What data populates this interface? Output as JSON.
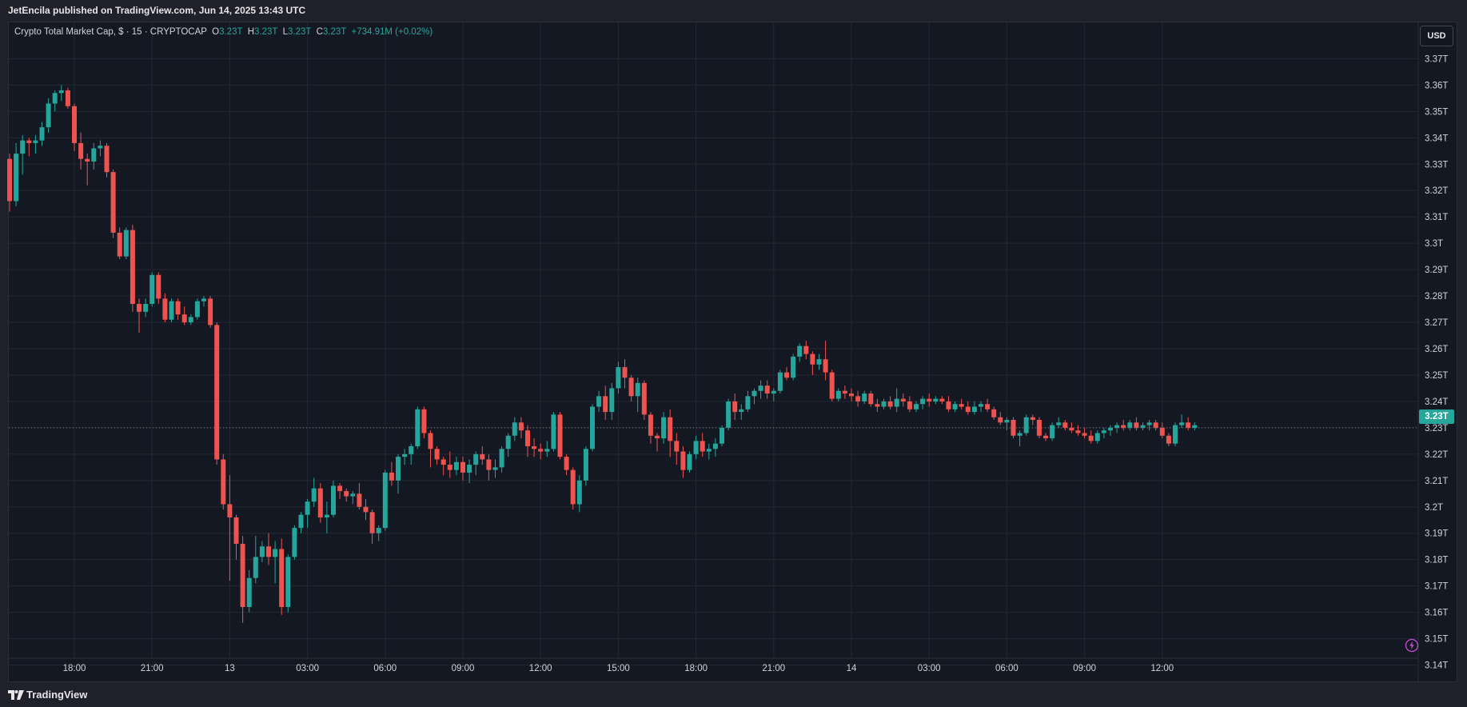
{
  "header": {
    "publisher_line": "JetEncila published on TradingView.com, Jun 14, 2025 13:43 UTC"
  },
  "legend": {
    "title": "Crypto Total Market Cap, $ · 15 · CRYPTOCAP",
    "o_label": "O",
    "o_value": "3.23T",
    "h_label": "H",
    "h_value": "3.23T",
    "l_label": "L",
    "l_value": "3.23T",
    "c_label": "C",
    "c_value": "3.23T",
    "change": "+734.91M (+0.02%)"
  },
  "currency": "USD",
  "last_price_label": "3.23T",
  "footer": {
    "brand": "TradingView"
  },
  "colors": {
    "up": "#26a69a",
    "down": "#ef5350",
    "background": "#141823",
    "grid": "#232733"
  },
  "chart_data": {
    "type": "candlestick",
    "symbol": "Crypto Total Market Cap",
    "interval": "15",
    "exchange": "CRYPTOCAP",
    "currency": "USD",
    "y_unit": "T",
    "ylim": [
      3.135,
      3.385
    ],
    "y_ticks": [
      3.14,
      3.15,
      3.16,
      3.17,
      3.18,
      3.19,
      3.2,
      3.21,
      3.22,
      3.23,
      3.24,
      3.25,
      3.26,
      3.27,
      3.28,
      3.29,
      3.3,
      3.31,
      3.32,
      3.33,
      3.34,
      3.35,
      3.36,
      3.37
    ],
    "y_tick_labels": [
      "3.14T",
      "3.15T",
      "3.16T",
      "3.17T",
      "3.18T",
      "3.19T",
      "3.2T",
      "3.21T",
      "3.22T",
      "3.23T",
      "3.24T",
      "3.25T",
      "3.26T",
      "3.27T",
      "3.28T",
      "3.29T",
      "3.3T",
      "3.31T",
      "3.32T",
      "3.33T",
      "3.34T",
      "3.35T",
      "3.36T",
      "3.37T"
    ],
    "x_ticks": [
      {
        "index": 10,
        "label": "18:00"
      },
      {
        "index": 22,
        "label": "21:00"
      },
      {
        "index": 34,
        "label": "13"
      },
      {
        "index": 46,
        "label": "03:00"
      },
      {
        "index": 58,
        "label": "06:00"
      },
      {
        "index": 70,
        "label": "09:00"
      },
      {
        "index": 82,
        "label": "12:00"
      },
      {
        "index": 94,
        "label": "15:00"
      },
      {
        "index": 106,
        "label": "18:00"
      },
      {
        "index": 118,
        "label": "21:00"
      },
      {
        "index": 130,
        "label": "14"
      },
      {
        "index": 142,
        "label": "03:00"
      },
      {
        "index": 154,
        "label": "06:00"
      },
      {
        "index": 166,
        "label": "09:00"
      },
      {
        "index": 178,
        "label": "12:00"
      }
    ],
    "last_price": 3.23,
    "grid": true,
    "candles": [
      [
        3.332,
        3.334,
        3.312,
        3.316
      ],
      [
        3.316,
        3.338,
        3.314,
        3.334
      ],
      [
        3.334,
        3.341,
        3.326,
        3.339
      ],
      [
        3.339,
        3.34,
        3.333,
        3.338
      ],
      [
        3.338,
        3.341,
        3.334,
        3.339
      ],
      [
        3.339,
        3.346,
        3.337,
        3.344
      ],
      [
        3.344,
        3.355,
        3.342,
        3.353
      ],
      [
        3.353,
        3.358,
        3.35,
        3.357
      ],
      [
        3.357,
        3.36,
        3.354,
        3.358
      ],
      [
        3.358,
        3.359,
        3.351,
        3.352
      ],
      [
        3.352,
        3.353,
        3.335,
        3.338
      ],
      [
        3.338,
        3.342,
        3.328,
        3.332
      ],
      [
        3.332,
        3.334,
        3.322,
        3.331
      ],
      [
        3.331,
        3.338,
        3.328,
        3.336
      ],
      [
        3.336,
        3.339,
        3.333,
        3.337
      ],
      [
        3.337,
        3.338,
        3.325,
        3.327
      ],
      [
        3.327,
        3.328,
        3.302,
        3.304
      ],
      [
        3.304,
        3.306,
        3.294,
        3.295
      ],
      [
        3.295,
        3.306,
        3.294,
        3.305
      ],
      [
        3.305,
        3.307,
        3.274,
        3.277
      ],
      [
        3.277,
        3.279,
        3.266,
        3.274
      ],
      [
        3.274,
        3.279,
        3.272,
        3.277
      ],
      [
        3.277,
        3.289,
        3.276,
        3.288
      ],
      [
        3.288,
        3.289,
        3.277,
        3.279
      ],
      [
        3.279,
        3.281,
        3.27,
        3.271
      ],
      [
        3.271,
        3.279,
        3.27,
        3.278
      ],
      [
        3.278,
        3.279,
        3.271,
        3.273
      ],
      [
        3.273,
        3.276,
        3.269,
        3.27
      ],
      [
        3.27,
        3.273,
        3.269,
        3.272
      ],
      [
        3.272,
        3.279,
        3.271,
        3.278
      ],
      [
        3.278,
        3.28,
        3.276,
        3.279
      ],
      [
        3.279,
        3.28,
        3.268,
        3.269
      ],
      [
        3.269,
        3.27,
        3.216,
        3.218
      ],
      [
        3.218,
        3.22,
        3.199,
        3.201
      ],
      [
        3.201,
        3.212,
        3.172,
        3.196
      ],
      [
        3.196,
        3.197,
        3.18,
        3.186
      ],
      [
        3.186,
        3.189,
        3.156,
        3.162
      ],
      [
        3.162,
        3.176,
        3.16,
        3.173
      ],
      [
        3.173,
        3.189,
        3.171,
        3.181
      ],
      [
        3.181,
        3.187,
        3.179,
        3.185
      ],
      [
        3.185,
        3.19,
        3.178,
        3.181
      ],
      [
        3.181,
        3.187,
        3.171,
        3.184
      ],
      [
        3.184,
        3.188,
        3.159,
        3.162
      ],
      [
        3.162,
        3.182,
        3.16,
        3.181
      ],
      [
        3.181,
        3.193,
        3.18,
        3.192
      ],
      [
        3.192,
        3.198,
        3.19,
        3.197
      ],
      [
        3.197,
        3.203,
        3.192,
        3.202
      ],
      [
        3.202,
        3.211,
        3.2,
        3.207
      ],
      [
        3.207,
        3.209,
        3.194,
        3.196
      ],
      [
        3.196,
        3.202,
        3.19,
        3.197
      ],
      [
        3.197,
        3.21,
        3.196,
        3.208
      ],
      [
        3.208,
        3.209,
        3.203,
        3.206
      ],
      [
        3.206,
        3.207,
        3.202,
        3.204
      ],
      [
        3.204,
        3.206,
        3.201,
        3.205
      ],
      [
        3.205,
        3.209,
        3.199,
        3.2
      ],
      [
        3.2,
        3.203,
        3.195,
        3.198
      ],
      [
        3.198,
        3.199,
        3.186,
        3.19
      ],
      [
        3.19,
        3.193,
        3.187,
        3.192
      ],
      [
        3.192,
        3.214,
        3.191,
        3.213
      ],
      [
        3.213,
        3.217,
        3.208,
        3.21
      ],
      [
        3.21,
        3.22,
        3.205,
        3.219
      ],
      [
        3.219,
        3.222,
        3.216,
        3.22
      ],
      [
        3.22,
        3.224,
        3.216,
        3.223
      ],
      [
        3.223,
        3.238,
        3.222,
        3.237
      ],
      [
        3.237,
        3.238,
        3.226,
        3.228
      ],
      [
        3.228,
        3.229,
        3.215,
        3.222
      ],
      [
        3.222,
        3.223,
        3.216,
        3.218
      ],
      [
        3.218,
        3.219,
        3.212,
        3.216
      ],
      [
        3.216,
        3.221,
        3.211,
        3.214
      ],
      [
        3.214,
        3.219,
        3.212,
        3.217
      ],
      [
        3.217,
        3.219,
        3.21,
        3.213
      ],
      [
        3.213,
        3.218,
        3.209,
        3.216
      ],
      [
        3.216,
        3.221,
        3.212,
        3.22
      ],
      [
        3.22,
        3.223,
        3.216,
        3.218
      ],
      [
        3.218,
        3.22,
        3.21,
        3.214
      ],
      [
        3.214,
        3.218,
        3.211,
        3.215
      ],
      [
        3.215,
        3.223,
        3.213,
        3.222
      ],
      [
        3.222,
        3.228,
        3.219,
        3.227
      ],
      [
        3.227,
        3.234,
        3.225,
        3.232
      ],
      [
        3.232,
        3.234,
        3.226,
        3.229
      ],
      [
        3.229,
        3.231,
        3.219,
        3.223
      ],
      [
        3.223,
        3.226,
        3.219,
        3.222
      ],
      [
        3.222,
        3.224,
        3.218,
        3.221
      ],
      [
        3.221,
        3.225,
        3.219,
        3.222
      ],
      [
        3.222,
        3.236,
        3.221,
        3.235
      ],
      [
        3.235,
        3.236,
        3.218,
        3.219
      ],
      [
        3.219,
        3.22,
        3.212,
        3.214
      ],
      [
        3.214,
        3.215,
        3.199,
        3.201
      ],
      [
        3.201,
        3.212,
        3.198,
        3.21
      ],
      [
        3.21,
        3.223,
        3.208,
        3.222
      ],
      [
        3.222,
        3.239,
        3.221,
        3.238
      ],
      [
        3.238,
        3.244,
        3.236,
        3.242
      ],
      [
        3.242,
        3.246,
        3.233,
        3.236
      ],
      [
        3.236,
        3.247,
        3.233,
        3.245
      ],
      [
        3.245,
        3.255,
        3.243,
        3.253
      ],
      [
        3.253,
        3.256,
        3.245,
        3.249
      ],
      [
        3.249,
        3.25,
        3.24,
        3.242
      ],
      [
        3.242,
        3.249,
        3.236,
        3.247
      ],
      [
        3.247,
        3.248,
        3.233,
        3.235
      ],
      [
        3.235,
        3.236,
        3.224,
        3.227
      ],
      [
        3.227,
        3.228,
        3.221,
        3.226
      ],
      [
        3.226,
        3.236,
        3.224,
        3.234
      ],
      [
        3.234,
        3.237,
        3.219,
        3.225
      ],
      [
        3.225,
        3.228,
        3.216,
        3.221
      ],
      [
        3.221,
        3.223,
        3.211,
        3.214
      ],
      [
        3.214,
        3.221,
        3.213,
        3.22
      ],
      [
        3.22,
        3.227,
        3.218,
        3.225
      ],
      [
        3.225,
        3.228,
        3.219,
        3.221
      ],
      [
        3.221,
        3.224,
        3.218,
        3.222
      ],
      [
        3.222,
        3.226,
        3.219,
        3.224
      ],
      [
        3.224,
        3.231,
        3.223,
        3.23
      ],
      [
        3.23,
        3.241,
        3.229,
        3.24
      ],
      [
        3.24,
        3.243,
        3.233,
        3.236
      ],
      [
        3.236,
        3.239,
        3.233,
        3.237
      ],
      [
        3.237,
        3.244,
        3.236,
        3.242
      ],
      [
        3.242,
        3.245,
        3.239,
        3.244
      ],
      [
        3.244,
        3.248,
        3.241,
        3.246
      ],
      [
        3.246,
        3.248,
        3.241,
        3.243
      ],
      [
        3.243,
        3.245,
        3.24,
        3.244
      ],
      [
        3.244,
        3.252,
        3.243,
        3.251
      ],
      [
        3.251,
        3.253,
        3.248,
        3.249
      ],
      [
        3.249,
        3.258,
        3.248,
        3.257
      ],
      [
        3.257,
        3.262,
        3.255,
        3.261
      ],
      [
        3.261,
        3.263,
        3.256,
        3.258
      ],
      [
        3.258,
        3.259,
        3.25,
        3.254
      ],
      [
        3.254,
        3.258,
        3.252,
        3.256
      ],
      [
        3.256,
        3.263,
        3.248,
        3.251
      ],
      [
        3.251,
        3.252,
        3.24,
        3.241
      ],
      [
        3.241,
        3.245,
        3.24,
        3.244
      ],
      [
        3.244,
        3.246,
        3.241,
        3.243
      ],
      [
        3.243,
        3.245,
        3.24,
        3.242
      ],
      [
        3.242,
        3.244,
        3.238,
        3.24
      ],
      [
        3.24,
        3.244,
        3.239,
        3.243
      ],
      [
        3.243,
        3.244,
        3.238,
        3.239
      ],
      [
        3.239,
        3.241,
        3.236,
        3.238
      ],
      [
        3.238,
        3.241,
        3.237,
        3.24
      ],
      [
        3.24,
        3.242,
        3.237,
        3.238
      ],
      [
        3.238,
        3.245,
        3.236,
        3.241
      ],
      [
        3.241,
        3.243,
        3.238,
        3.24
      ],
      [
        3.24,
        3.242,
        3.236,
        3.237
      ],
      [
        3.237,
        3.24,
        3.236,
        3.239
      ],
      [
        3.239,
        3.242,
        3.237,
        3.241
      ],
      [
        3.241,
        3.243,
        3.238,
        3.24
      ],
      [
        3.24,
        3.242,
        3.239,
        3.241
      ],
      [
        3.241,
        3.242,
        3.239,
        3.24
      ],
      [
        3.24,
        3.242,
        3.236,
        3.237
      ],
      [
        3.237,
        3.24,
        3.236,
        3.239
      ],
      [
        3.239,
        3.241,
        3.237,
        3.238
      ],
      [
        3.238,
        3.24,
        3.235,
        3.236
      ],
      [
        3.236,
        3.24,
        3.235,
        3.238
      ],
      [
        3.238,
        3.24,
        3.236,
        3.239
      ],
      [
        3.239,
        3.241,
        3.236,
        3.237
      ],
      [
        3.237,
        3.238,
        3.233,
        3.234
      ],
      [
        3.234,
        3.236,
        3.231,
        3.232
      ],
      [
        3.232,
        3.234,
        3.229,
        3.233
      ],
      [
        3.233,
        3.234,
        3.226,
        3.227
      ],
      [
        3.227,
        3.229,
        3.223,
        3.228
      ],
      [
        3.228,
        3.235,
        3.227,
        3.234
      ],
      [
        3.234,
        3.235,
        3.231,
        3.233
      ],
      [
        3.233,
        3.234,
        3.226,
        3.227
      ],
      [
        3.227,
        3.228,
        3.225,
        3.226
      ],
      [
        3.226,
        3.232,
        3.225,
        3.231
      ],
      [
        3.231,
        3.234,
        3.23,
        3.232
      ],
      [
        3.232,
        3.233,
        3.229,
        3.23
      ],
      [
        3.23,
        3.232,
        3.228,
        3.229
      ],
      [
        3.229,
        3.231,
        3.227,
        3.228
      ],
      [
        3.228,
        3.23,
        3.226,
        3.227
      ],
      [
        3.227,
        3.229,
        3.224,
        3.225
      ],
      [
        3.225,
        3.229,
        3.224,
        3.228
      ],
      [
        3.228,
        3.23,
        3.226,
        3.229
      ],
      [
        3.229,
        3.231,
        3.227,
        3.23
      ],
      [
        3.23,
        3.232,
        3.228,
        3.231
      ],
      [
        3.231,
        3.233,
        3.229,
        3.23
      ],
      [
        3.23,
        3.233,
        3.229,
        3.232
      ],
      [
        3.232,
        3.234,
        3.229,
        3.23
      ],
      [
        3.23,
        3.232,
        3.229,
        3.231
      ],
      [
        3.231,
        3.233,
        3.229,
        3.232
      ],
      [
        3.232,
        3.233,
        3.229,
        3.23
      ],
      [
        3.23,
        3.232,
        3.226,
        3.227
      ],
      [
        3.227,
        3.228,
        3.223,
        3.224
      ],
      [
        3.224,
        3.232,
        3.223,
        3.231
      ],
      [
        3.231,
        3.235,
        3.23,
        3.232
      ],
      [
        3.232,
        3.234,
        3.229,
        3.23
      ],
      [
        3.23,
        3.232,
        3.229,
        3.231
      ]
    ]
  }
}
